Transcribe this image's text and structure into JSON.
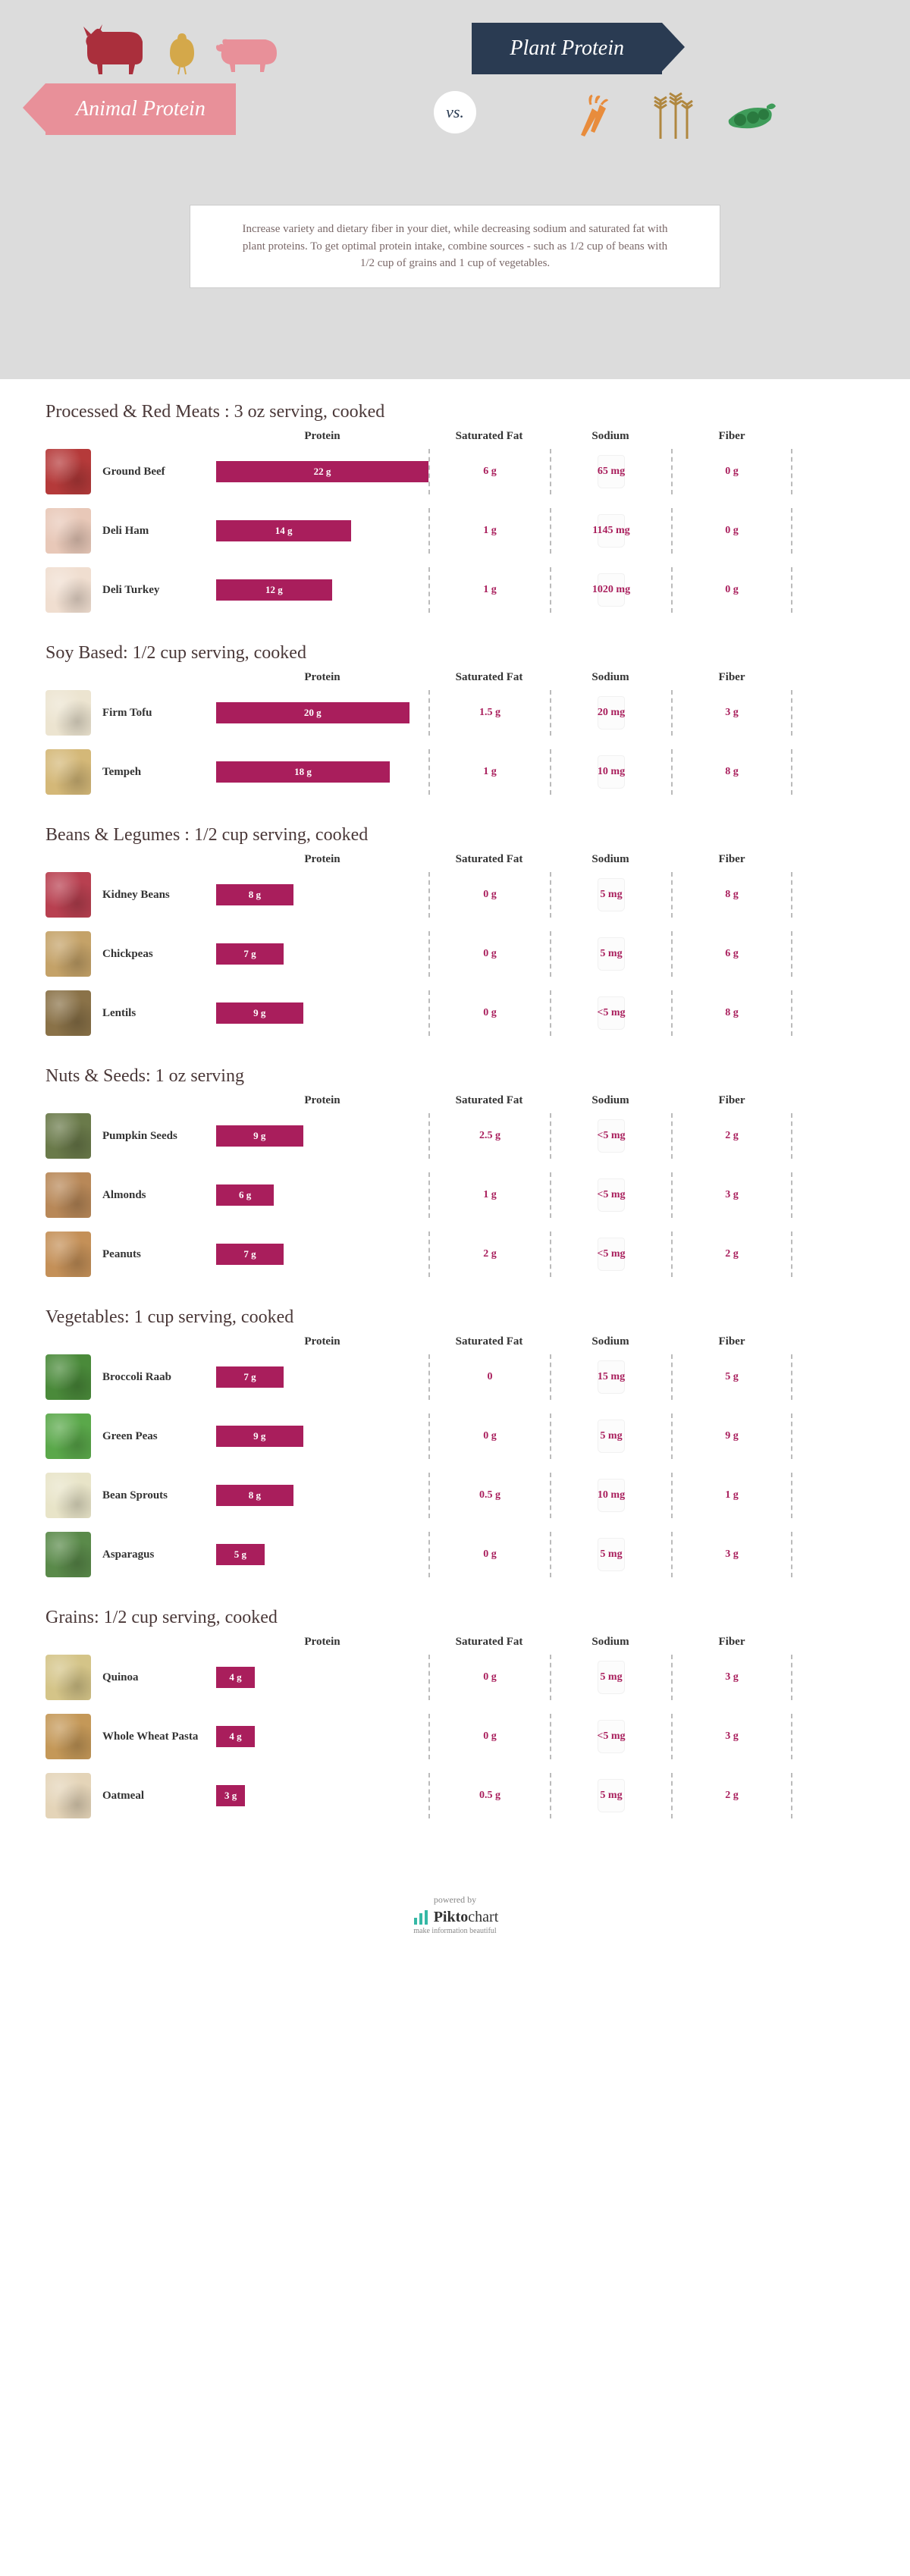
{
  "header": {
    "animalTitle": "Animal Protein",
    "plantTitle": "Plant Protein",
    "vs": "vs.",
    "intro": "Increase variety and dietary fiber in your diet, while decreasing sodium and saturated fat with plant proteins. To get optimal protein intake, combine sources - such as 1/2 cup of beans with 1/2 cup of grains and 1 cup of vegetables.",
    "animalIconColors": {
      "cow": "#aa2f3c",
      "chicken": "#d4a84a",
      "pig": "#e89099"
    },
    "plantIconColors": {
      "carrot": "#e88c3c",
      "wheat": "#b0873f",
      "peas": "#3f9c5a"
    }
  },
  "columns": {
    "protein": "Protein",
    "satfat": "Saturated Fat",
    "sodium": "Sodium",
    "fiber": "Fiber"
  },
  "barColor": "#a91e5c",
  "valueColor": "#a91e5c",
  "maxProtein": 22,
  "categories": [
    {
      "title": "Processed & Red Meats : 3 oz serving, cooked",
      "items": [
        {
          "name": "Ground Beef",
          "protein": "22 g",
          "proteinVal": 22,
          "satfat": "6 g",
          "sodium": "65 mg",
          "fiber": "0 g",
          "imgColor": "#b53a3a"
        },
        {
          "name": "Deli Ham",
          "protein": "14 g",
          "proteinVal": 14,
          "satfat": "1 g",
          "sodium": "1145 mg",
          "fiber": "0 g",
          "imgColor": "#e8c8b8"
        },
        {
          "name": "Deli Turkey",
          "protein": "12 g",
          "proteinVal": 12,
          "satfat": "1 g",
          "sodium": "1020 mg",
          "fiber": "0 g",
          "imgColor": "#f0ded0"
        }
      ]
    },
    {
      "title": "Soy Based: 1/2 cup serving, cooked",
      "items": [
        {
          "name": "Firm Tofu",
          "protein": "20 g",
          "proteinVal": 20,
          "satfat": "1.5 g",
          "sodium": "20 mg",
          "fiber": "3 g",
          "imgColor": "#ece4d0"
        },
        {
          "name": "Tempeh",
          "protein": "18 g",
          "proteinVal": 18,
          "satfat": "1 g",
          "sodium": "10 mg",
          "fiber": "8 g",
          "imgColor": "#d4b878"
        }
      ]
    },
    {
      "title": "Beans & Legumes : 1/2 cup serving, cooked",
      "items": [
        {
          "name": "Kidney Beans",
          "protein": "8 g",
          "proteinVal": 8,
          "satfat": "0 g",
          "sodium": "5 mg",
          "fiber": "8 g",
          "imgColor": "#b84050"
        },
        {
          "name": "Chickpeas",
          "protein": "7 g",
          "proteinVal": 7,
          "satfat": "0 g",
          "sodium": "5 mg",
          "fiber": "6 g",
          "imgColor": "#c4a268"
        },
        {
          "name": "Lentils",
          "protein": "9 g",
          "proteinVal": 9,
          "satfat": "0 g",
          "sodium": "<5 mg",
          "fiber": "8 g",
          "imgColor": "#8a7248"
        }
      ]
    },
    {
      "title": "Nuts & Seeds: 1 oz serving",
      "items": [
        {
          "name": "Pumpkin Seeds",
          "protein": "9 g",
          "proteinVal": 9,
          "satfat": "2.5 g",
          "sodium": "<5 mg",
          "fiber": "2 g",
          "imgColor": "#6a7a4a"
        },
        {
          "name": "Almonds",
          "protein": "6 g",
          "proteinVal": 6,
          "satfat": "1 g",
          "sodium": "<5 mg",
          "fiber": "3 g",
          "imgColor": "#b88858"
        },
        {
          "name": "Peanuts",
          "protein": "7 g",
          "proteinVal": 7,
          "satfat": "2 g",
          "sodium": "<5 mg",
          "fiber": "2 g",
          "imgColor": "#c49058"
        }
      ]
    },
    {
      "title": "Vegetables: 1 cup serving, cooked",
      "items": [
        {
          "name": "Broccoli Raab",
          "protein": "7 g",
          "proteinVal": 7,
          "satfat": "0",
          "sodium": "15 mg",
          "fiber": "5 g",
          "imgColor": "#4a8a3a"
        },
        {
          "name": "Green Peas",
          "protein": "9 g",
          "proteinVal": 9,
          "satfat": "0 g",
          "sodium": "5 mg",
          "fiber": "9 g",
          "imgColor": "#5aa84a"
        },
        {
          "name": "Bean Sprouts",
          "protein": "8 g",
          "proteinVal": 8,
          "satfat": "0.5 g",
          "sodium": "10 mg",
          "fiber": "1 g",
          "imgColor": "#e8e4c8"
        },
        {
          "name": "Asparagus",
          "protein": "5 g",
          "proteinVal": 5,
          "satfat": "0 g",
          "sodium": "5 mg",
          "fiber": "3 g",
          "imgColor": "#5a8a4a"
        }
      ]
    },
    {
      "title": "Grains: 1/2 cup serving, cooked",
      "items": [
        {
          "name": "Quinoa",
          "protein": "4 g",
          "proteinVal": 4,
          "satfat": "0 g",
          "sodium": "5 mg",
          "fiber": "3 g",
          "imgColor": "#d4c488"
        },
        {
          "name": "Whole Wheat Pasta",
          "protein": "4 g",
          "proteinVal": 4,
          "satfat": "0 g",
          "sodium": "<5 mg",
          "fiber": "3 g",
          "imgColor": "#c49858"
        },
        {
          "name": "Oatmeal",
          "protein": "3 g",
          "proteinVal": 3,
          "satfat": "0.5 g",
          "sodium": "5 mg",
          "fiber": "2 g",
          "imgColor": "#e4d4b8"
        }
      ]
    }
  ],
  "footer": {
    "poweredBy": "powered by",
    "brand1": "Pikto",
    "brand2": "chart",
    "tagline": "make information beautiful"
  }
}
